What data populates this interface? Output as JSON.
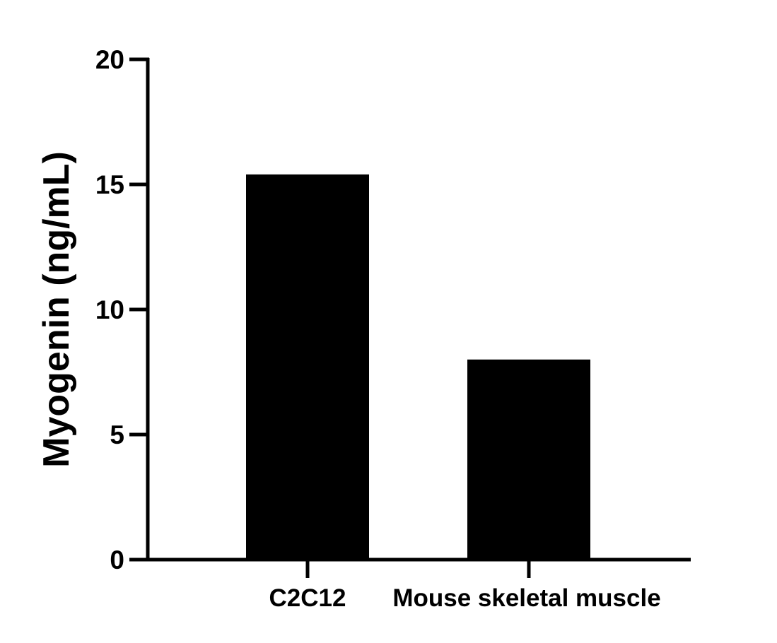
{
  "chart_data": {
    "type": "bar",
    "title": "",
    "xlabel": "",
    "ylabel": "Myogenin (ng/mL)",
    "categories": [
      "C2C12",
      "Mouse skeletal muscle"
    ],
    "values": [
      15.4,
      8.0
    ],
    "ylim": [
      0,
      20
    ],
    "yticks": [
      0,
      5,
      10,
      15,
      20
    ],
    "ytick_labels": [
      "0",
      "5",
      "10",
      "15",
      "20"
    ],
    "grid": false,
    "legend": null,
    "bar_color": "#000000",
    "axis_color": "#000000"
  },
  "labels": {
    "y_axis_title": "Myogenin (ng/mL)",
    "category_0": "C2C12",
    "category_1": "Mouse skeletal muscle"
  }
}
